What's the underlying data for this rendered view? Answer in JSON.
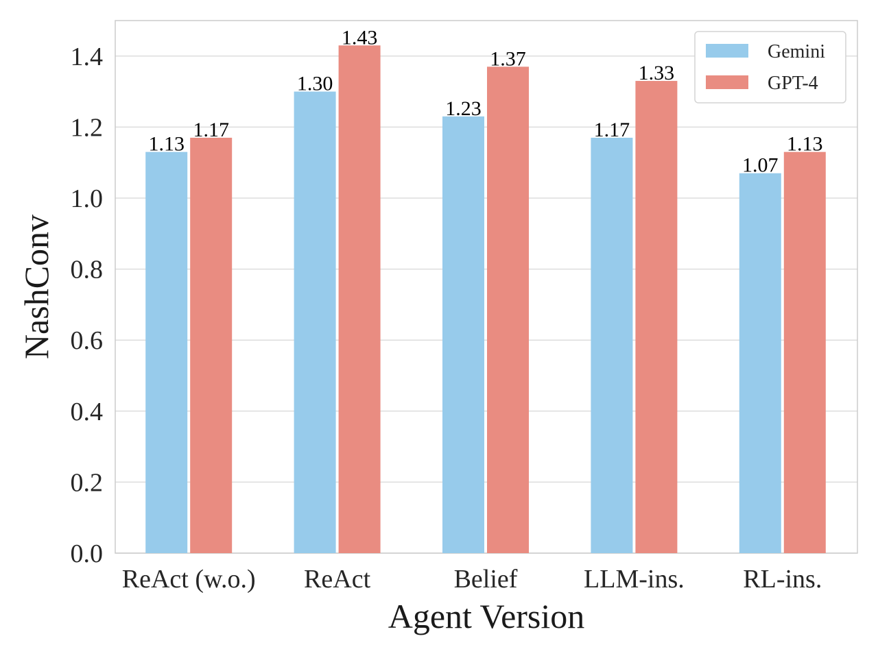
{
  "chart_data": {
    "type": "bar",
    "title": "",
    "xlabel": "Agent Version",
    "ylabel": "NashConv",
    "categories": [
      "ReAct (w.o.)",
      "ReAct",
      "Belief",
      "LLM-ins.",
      "RL-ins."
    ],
    "series": [
      {
        "name": "Gemini",
        "color": "#97CBEB",
        "values": [
          1.13,
          1.3,
          1.23,
          1.17,
          1.07
        ],
        "labels": [
          "1.13",
          "1.30",
          "1.23",
          "1.17",
          "1.07"
        ]
      },
      {
        "name": "GPT-4",
        "color": "#E98C81",
        "values": [
          1.17,
          1.43,
          1.37,
          1.33,
          1.13
        ],
        "labels": [
          "1.17",
          "1.43",
          "1.37",
          "1.33",
          "1.13"
        ]
      }
    ],
    "ylim": [
      0,
      1.5
    ],
    "yticks": [
      "0.0",
      "0.2",
      "0.4",
      "0.6",
      "0.8",
      "1.0",
      "1.2",
      "1.4"
    ],
    "grid": "horizontal",
    "legend_position": "top-right"
  }
}
